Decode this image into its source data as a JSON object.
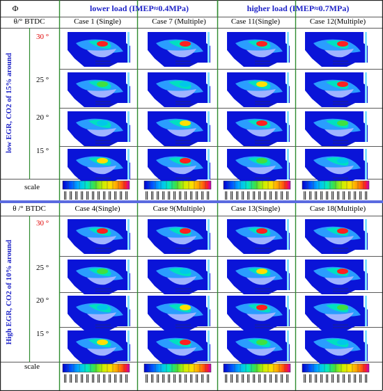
{
  "header": {
    "phi": "Φ",
    "lower_load": "lower load (IMEP≈0.4MPa)",
    "higher_load": "higher load (IMEP≈0.7MPa)"
  },
  "sections": [
    {
      "theta_label": "θ/° BTDC",
      "side_label": "low EGR, CO2 of 15% around",
      "cases": [
        "Case 1 (Single)",
        "Case 7 (Multiple)",
        "Case 11(Single)",
        "Case 12(Multiple)"
      ],
      "angles": [
        "30 °",
        "25 °",
        "20 °",
        "15 °"
      ]
    },
    {
      "theta_label": "θ /° BTDC",
      "side_label": "High EGR, CO2 of 10% around",
      "cases": [
        "Case 4(Single)",
        "Case 9(Multiple)",
        "Case 13(Single)",
        "Case 18(Multiple)"
      ],
      "angles": [
        "30 °",
        "25 °",
        "20 °",
        "15 °"
      ]
    }
  ],
  "scale_label": "scale",
  "colors": {
    "grid": "#2e8b2e",
    "divider": "#5b6be0",
    "title_text": "#1f24c8",
    "highlight_angle": "#e00000"
  }
}
